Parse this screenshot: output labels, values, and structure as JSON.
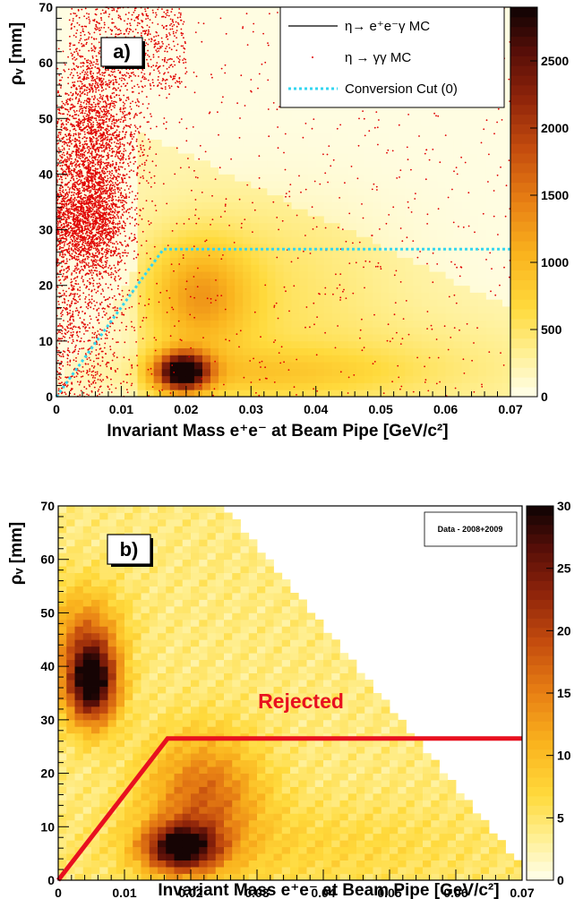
{
  "chart_data": [
    {
      "type": "heatmap",
      "panel_label": "a)",
      "xlabel": "Invariant Mass e⁺e⁻ at Beam Pipe [GeV/c²]",
      "ylabel": "ρᵥ [mm]",
      "xlim": [
        0,
        0.07
      ],
      "ylim": [
        0,
        70
      ],
      "x_ticks": [
        "0",
        "0.01",
        "0.02",
        "0.03",
        "0.04",
        "0.05",
        "0.06",
        "0.07"
      ],
      "y_ticks": [
        "0",
        "10",
        "20",
        "30",
        "40",
        "50",
        "60",
        "70"
      ],
      "colorbar": {
        "range": [
          0,
          2900
        ],
        "ticks": [
          "0",
          "500",
          "1000",
          "1500",
          "2000",
          "2500"
        ]
      },
      "legend": {
        "placement": "top-right",
        "entries": [
          {
            "label": "η→ e⁺e⁻γ MC",
            "style": "line",
            "color": "#000000"
          },
          {
            "label": "η → γγ MC",
            "style": "marker",
            "color": "#e00000"
          },
          {
            "label": "Conversion Cut (0)",
            "style": "dotted",
            "color": "#33d6f0"
          }
        ]
      },
      "peaks": [
        {
          "x": 0.0195,
          "y": 4.5,
          "value": 2900
        },
        {
          "x": 0.022,
          "y": 18,
          "value": 900
        }
      ],
      "cut_line": {
        "points": [
          [
            0,
            0
          ],
          [
            0.0165,
            26.5
          ],
          [
            0.07,
            26.5
          ]
        ]
      }
    },
    {
      "type": "heatmap",
      "panel_label": "b)",
      "xlabel": "Invariant Mass e⁺e⁻ at Beam Pipe [GeV/c²]",
      "ylabel": "ρᵥ [mm]",
      "xlim": [
        0,
        0.07
      ],
      "ylim": [
        0,
        70
      ],
      "x_ticks": [
        "0",
        "0.01",
        "0.02",
        "0.03",
        "0.04",
        "0.05",
        "0.06",
        "0.07"
      ],
      "y_ticks": [
        "0",
        "10",
        "20",
        "30",
        "40",
        "50",
        "60",
        "70"
      ],
      "colorbar": {
        "range": [
          0,
          30
        ],
        "ticks": [
          "0",
          "5",
          "10",
          "15",
          "20",
          "25",
          "30"
        ]
      },
      "data_box": "Data - 2008+2009",
      "annotation": "Rejected",
      "peaks": [
        {
          "x": 0.005,
          "y": 37,
          "value": 30
        },
        {
          "x": 0.0185,
          "y": 6,
          "value": 26
        }
      ],
      "cut_line": {
        "points": [
          [
            0,
            0
          ],
          [
            0.0165,
            26.5
          ],
          [
            0.07,
            26.5
          ]
        ],
        "color": "#e8101f"
      }
    }
  ]
}
